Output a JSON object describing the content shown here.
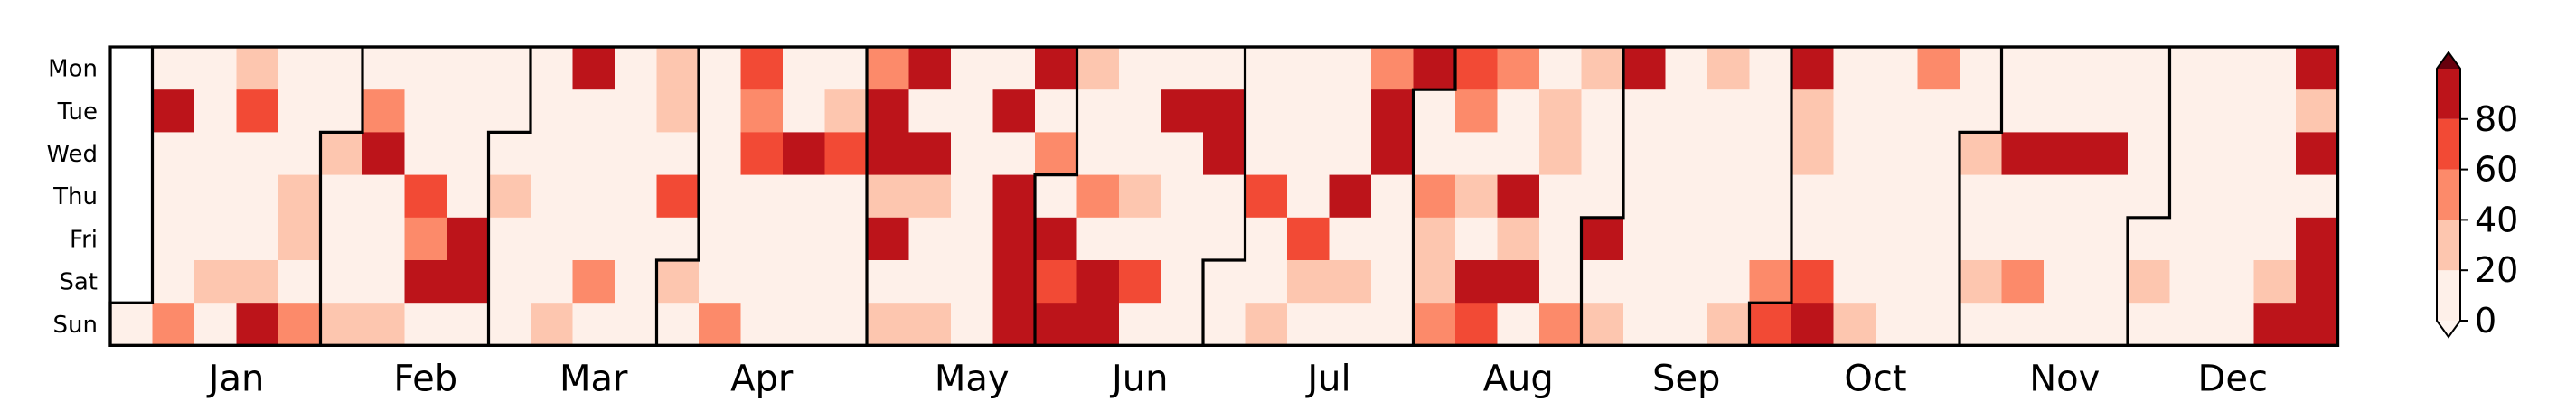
{
  "chart_data": {
    "type": "heatmap",
    "title": "",
    "xlabel": "",
    "ylabel": "",
    "weekday_labels": [
      "Mon",
      "Tue",
      "Wed",
      "Thu",
      "Fri",
      "Sat",
      "Sun"
    ],
    "month_labels": [
      "Jan",
      "Feb",
      "Mar",
      "Apr",
      "May",
      "Jun",
      "Jul",
      "Aug",
      "Sep",
      "Oct",
      "Nov",
      "Dec"
    ],
    "first_weekday_index": 6,
    "month_day_counts": [
      31,
      28,
      31,
      30,
      31,
      30,
      31,
      31,
      30,
      31,
      30,
      31
    ],
    "colorbar": {
      "ticks": [
        0,
        20,
        40,
        60,
        80
      ],
      "range": [
        0,
        100
      ],
      "extend": "both",
      "bins": [
        {
          "min": 0,
          "max": 20,
          "color": "#fef0e9"
        },
        {
          "min": 20,
          "max": 40,
          "color": "#fdc6af"
        },
        {
          "min": 40,
          "max": 60,
          "color": "#fc8a6a"
        },
        {
          "min": 60,
          "max": 80,
          "color": "#f24a35"
        },
        {
          "min": 80,
          "max": 100,
          "color": "#bc141a"
        }
      ],
      "under_color": "#fff5f0",
      "over_color": "#67000d"
    },
    "values_by_month": [
      [
        10,
        10,
        90,
        10,
        10,
        10,
        10,
        50,
        10,
        10,
        10,
        10,
        10,
        30,
        10,
        30,
        70,
        10,
        10,
        10,
        30,
        90,
        10,
        10,
        10,
        40,
        30,
        10,
        50,
        10,
        10
      ],
      [
        30,
        10,
        10,
        10,
        30,
        10,
        50,
        90,
        10,
        10,
        10,
        30,
        10,
        10,
        10,
        70,
        50,
        90,
        10,
        10,
        10,
        10,
        10,
        90,
        90,
        10,
        10,
        10
      ],
      [
        10,
        30,
        10,
        10,
        10,
        10,
        10,
        10,
        10,
        10,
        10,
        30,
        90,
        10,
        10,
        10,
        10,
        50,
        10,
        10,
        10,
        10,
        10,
        10,
        10,
        10,
        30,
        30,
        10,
        70,
        10
      ],
      [
        30,
        10,
        10,
        10,
        10,
        10,
        10,
        10,
        50,
        70,
        50,
        70,
        10,
        10,
        10,
        10,
        10,
        10,
        90,
        10,
        10,
        10,
        10,
        10,
        30,
        70,
        10,
        10,
        10,
        10
      ],
      [
        50,
        90,
        90,
        30,
        90,
        10,
        30,
        90,
        10,
        90,
        30,
        10,
        10,
        30,
        10,
        10,
        10,
        10,
        10,
        10,
        10,
        10,
        90,
        10,
        90,
        90,
        90,
        90,
        90,
        10,
        50
      ],
      [
        10,
        90,
        70,
        90,
        30,
        10,
        10,
        50,
        10,
        90,
        90,
        10,
        10,
        10,
        30,
        10,
        70,
        10,
        10,
        90,
        10,
        10,
        10,
        10,
        10,
        10,
        90,
        90,
        10,
        10
      ],
      [
        10,
        10,
        10,
        10,
        10,
        70,
        10,
        10,
        30,
        10,
        10,
        10,
        10,
        70,
        30,
        10,
        10,
        10,
        10,
        90,
        10,
        30,
        10,
        50,
        90,
        90,
        10,
        10,
        10,
        10,
        90
      ],
      [
        10,
        10,
        50,
        30,
        30,
        50,
        70,
        50,
        10,
        30,
        10,
        90,
        70,
        50,
        10,
        10,
        90,
        30,
        90,
        10,
        10,
        30,
        30,
        10,
        10,
        10,
        50,
        30,
        10,
        10,
        10
      ],
      [
        90,
        10,
        30,
        90,
        10,
        10,
        10,
        10,
        10,
        10,
        10,
        10,
        10,
        10,
        10,
        10,
        10,
        30,
        10,
        10,
        10,
        10,
        10,
        30,
        10,
        10,
        10,
        10,
        10,
        50
      ],
      [
        70,
        90,
        30,
        30,
        10,
        10,
        70,
        90,
        10,
        10,
        10,
        10,
        10,
        10,
        30,
        10,
        10,
        10,
        10,
        10,
        10,
        10,
        50,
        10,
        10,
        10,
        10,
        10,
        10,
        10,
        10
      ],
      [
        30,
        10,
        10,
        30,
        10,
        10,
        10,
        90,
        10,
        10,
        50,
        10,
        10,
        10,
        90,
        10,
        10,
        10,
        10,
        10,
        10,
        90,
        10,
        10,
        10,
        10,
        10,
        10,
        10,
        10
      ],
      [
        10,
        30,
        10,
        10,
        10,
        10,
        10,
        10,
        10,
        10,
        10,
        10,
        10,
        10,
        10,
        10,
        10,
        10,
        10,
        10,
        10,
        10,
        30,
        90,
        90,
        30,
        90,
        10,
        90,
        90,
        90
      ]
    ]
  }
}
